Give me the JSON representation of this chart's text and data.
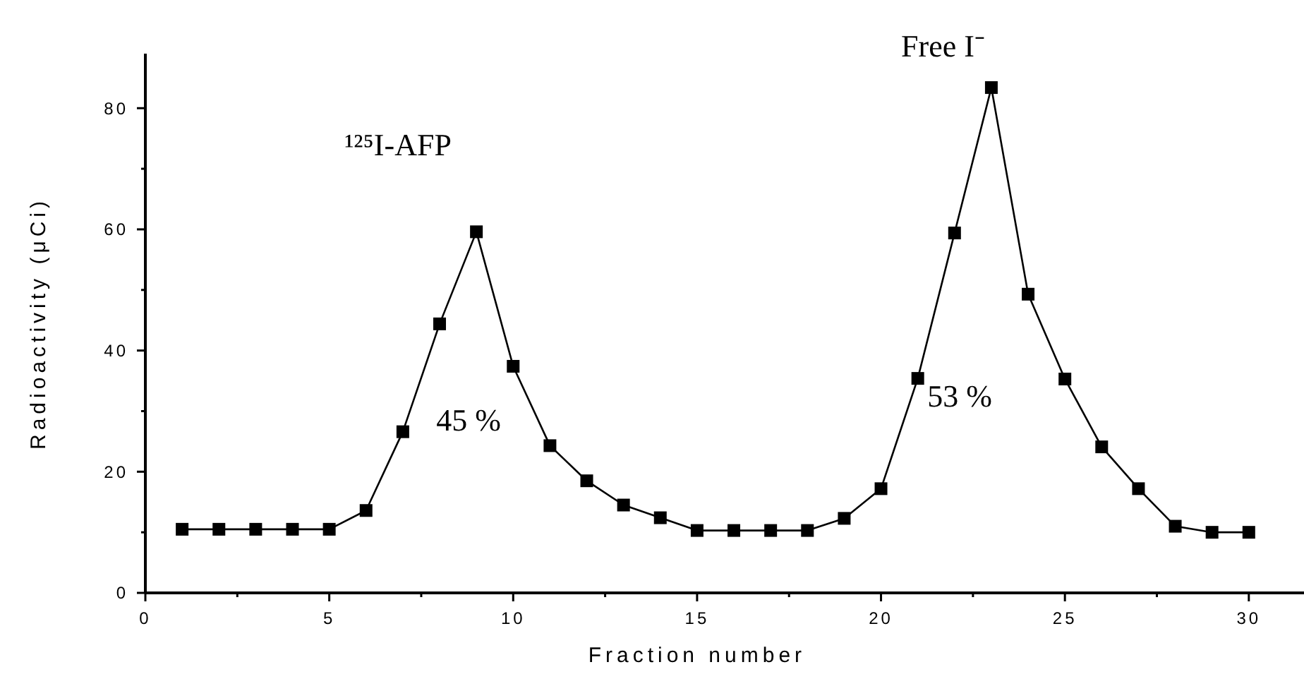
{
  "chart_data": {
    "type": "line",
    "xlabel": "Fraction number",
    "ylabel": "Radioactivity (μCi)",
    "x": [
      1,
      2,
      3,
      4,
      5,
      6,
      7,
      8,
      9,
      10,
      11,
      12,
      13,
      14,
      15,
      16,
      17,
      18,
      19,
      20,
      21,
      22,
      23,
      24,
      25,
      26,
      27,
      28,
      29,
      30
    ],
    "series": [
      {
        "color": "#000000",
        "values": [
          10.5,
          10.5,
          10.5,
          10.5,
          10.5,
          13.6,
          26.6,
          44.4,
          59.6,
          37.4,
          24.3,
          18.5,
          14.5,
          12.4,
          10.3,
          10.3,
          10.3,
          10.3,
          12.3,
          17.2,
          35.4,
          59.4,
          83.4,
          49.3,
          35.3,
          24.1,
          17.2,
          11,
          10,
          10
        ]
      }
    ],
    "xlim": [
      0,
      31.5
    ],
    "ylim": [
      0,
      89
    ],
    "xticks": [
      0,
      {
        "value": 2.5,
        "label": null
      },
      5,
      {
        "value": 7.5,
        "label": null
      },
      10,
      {
        "value": 12.5,
        "label": null
      },
      15,
      {
        "value": 17.5,
        "label": null
      },
      20,
      {
        "value": 22.5,
        "label": null
      },
      25,
      {
        "value": 27.5,
        "label": null
      },
      30
    ],
    "yticks": [
      0,
      {
        "value": 10,
        "label": null
      },
      20,
      {
        "value": 30,
        "label": null
      },
      40,
      {
        "value": 50,
        "label": null
      },
      60,
      {
        "value": 70,
        "label": null
      },
      80
    ],
    "marker": "square",
    "line_style": "solid",
    "annotations": [
      "¹²⁵I-AFP",
      "Free I⁻",
      "45 %",
      "53 %"
    ]
  }
}
